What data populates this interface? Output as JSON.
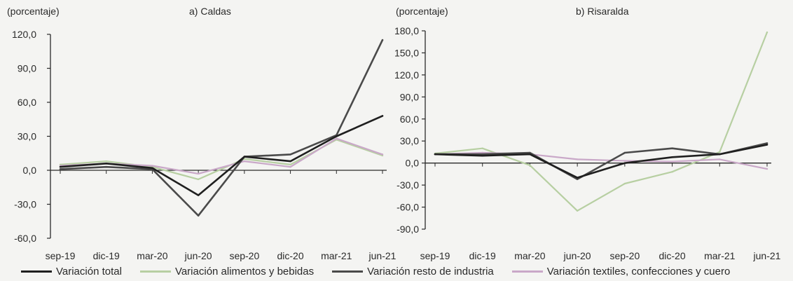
{
  "colors": {
    "variacion_total": "#1f1f1f",
    "variacion_alimentos": "#b7cfa2",
    "variacion_resto": "#4a4a4a",
    "variacion_textiles": "#c9a8c8",
    "axis": "#2a2a2a",
    "background": "#f4f4f2"
  },
  "chart_data": [
    {
      "type": "line",
      "title": "a) Caldas",
      "ylabel": "(porcentaje)",
      "xlabel": "",
      "x": [
        "sep-19",
        "dic-19",
        "mar-20",
        "jun-20",
        "sep-20",
        "dic-20",
        "mar-21",
        "jun-21"
      ],
      "ylim": [
        -60,
        120
      ],
      "yticks": [
        "120,0",
        "90,0",
        "60,0",
        "30,0",
        "0,0",
        "-30,0",
        "-60,0"
      ],
      "ytick_values": [
        120,
        90,
        60,
        30,
        0,
        -30,
        -60
      ],
      "grid": false,
      "series": [
        {
          "name": "Variación total",
          "key": "variacion_total",
          "values": [
            3,
            6,
            2,
            -22,
            12,
            8,
            30,
            48
          ]
        },
        {
          "name": "Variación alimentos y bebidas",
          "key": "variacion_alimentos",
          "values": [
            5,
            8,
            3,
            -8,
            10,
            5,
            27,
            13
          ]
        },
        {
          "name": "Variación resto de industria",
          "key": "variacion_resto",
          "values": [
            1,
            3,
            1,
            -40,
            12,
            14,
            31,
            115
          ]
        },
        {
          "name": "Variación textiles, confecciones y cuero",
          "key": "variacion_textiles",
          "values": [
            4,
            6,
            4,
            -3,
            8,
            3,
            28,
            14
          ]
        }
      ]
    },
    {
      "type": "line",
      "title": "b) Risaralda",
      "ylabel": "(porcentaje)",
      "xlabel": "",
      "x": [
        "sep-19",
        "dic-19",
        "mar-20",
        "jun-20",
        "sep-20",
        "dic-20",
        "mar-21",
        "jun-21"
      ],
      "ylim": [
        -90,
        180
      ],
      "yticks": [
        "180,0",
        "150,0",
        "120,0",
        "90,0",
        "60,0",
        "30,0",
        "0,0",
        "-30,0",
        "-60,0",
        "-90,0"
      ],
      "ytick_values": [
        180,
        150,
        120,
        90,
        60,
        30,
        0,
        -30,
        -60,
        -90
      ],
      "grid": false,
      "series": [
        {
          "name": "Variación total",
          "key": "variacion_total",
          "values": [
            12,
            10,
            12,
            -20,
            0,
            8,
            12,
            25
          ]
        },
        {
          "name": "Variación alimentos y bebidas",
          "key": "variacion_alimentos",
          "values": [
            13,
            20,
            -3,
            -65,
            -28,
            -12,
            15,
            178
          ]
        },
        {
          "name": "Variación resto de industria",
          "key": "variacion_resto",
          "values": [
            12,
            12,
            14,
            -22,
            14,
            20,
            12,
            27
          ]
        },
        {
          "name": "Variación textiles, confecciones y cuero",
          "key": "variacion_textiles",
          "values": [
            12,
            14,
            12,
            5,
            3,
            2,
            5,
            -8
          ]
        }
      ]
    }
  ],
  "legend": [
    {
      "label": "Variación total",
      "key": "variacion_total"
    },
    {
      "label": "Variación alimentos y bebidas",
      "key": "variacion_alimentos"
    },
    {
      "label": "Variación resto de industria",
      "key": "variacion_resto"
    },
    {
      "label": "Variación textiles, confecciones y cuero",
      "key": "variacion_textiles"
    }
  ]
}
